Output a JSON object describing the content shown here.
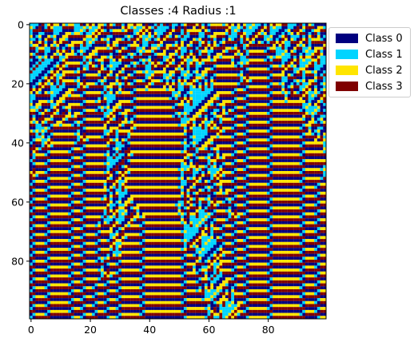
{
  "chart_data": {
    "type": "heatmap",
    "title": "Classes :4 Radius :1",
    "xlabel": "",
    "ylabel": "",
    "rows": 100,
    "cols": 100,
    "xlim": [
      -0.5,
      99.5
    ],
    "ylim": [
      99.5,
      -0.5
    ],
    "x_ticks": [
      0,
      20,
      40,
      60,
      80
    ],
    "y_ticks": [
      0,
      20,
      40,
      60,
      80
    ],
    "x_tick_labels": [
      "0",
      "20",
      "40",
      "60",
      "80"
    ],
    "y_tick_labels": [
      "0",
      "20",
      "40",
      "60",
      "80"
    ],
    "grid": false,
    "legend_position": "outside upper right",
    "classes": [
      {
        "label": "Class 0",
        "color": "#00007f"
      },
      {
        "label": "Class 1",
        "color": "#00d4ff"
      },
      {
        "label": "Class 2",
        "color": "#ffe500"
      },
      {
        "label": "Class 3",
        "color": "#7f0000"
      }
    ],
    "row0_pattern": "random-like mixture of classes 0-3 (cellular automaton, 4 classes, radius 1; exact cell values not legible)"
  }
}
